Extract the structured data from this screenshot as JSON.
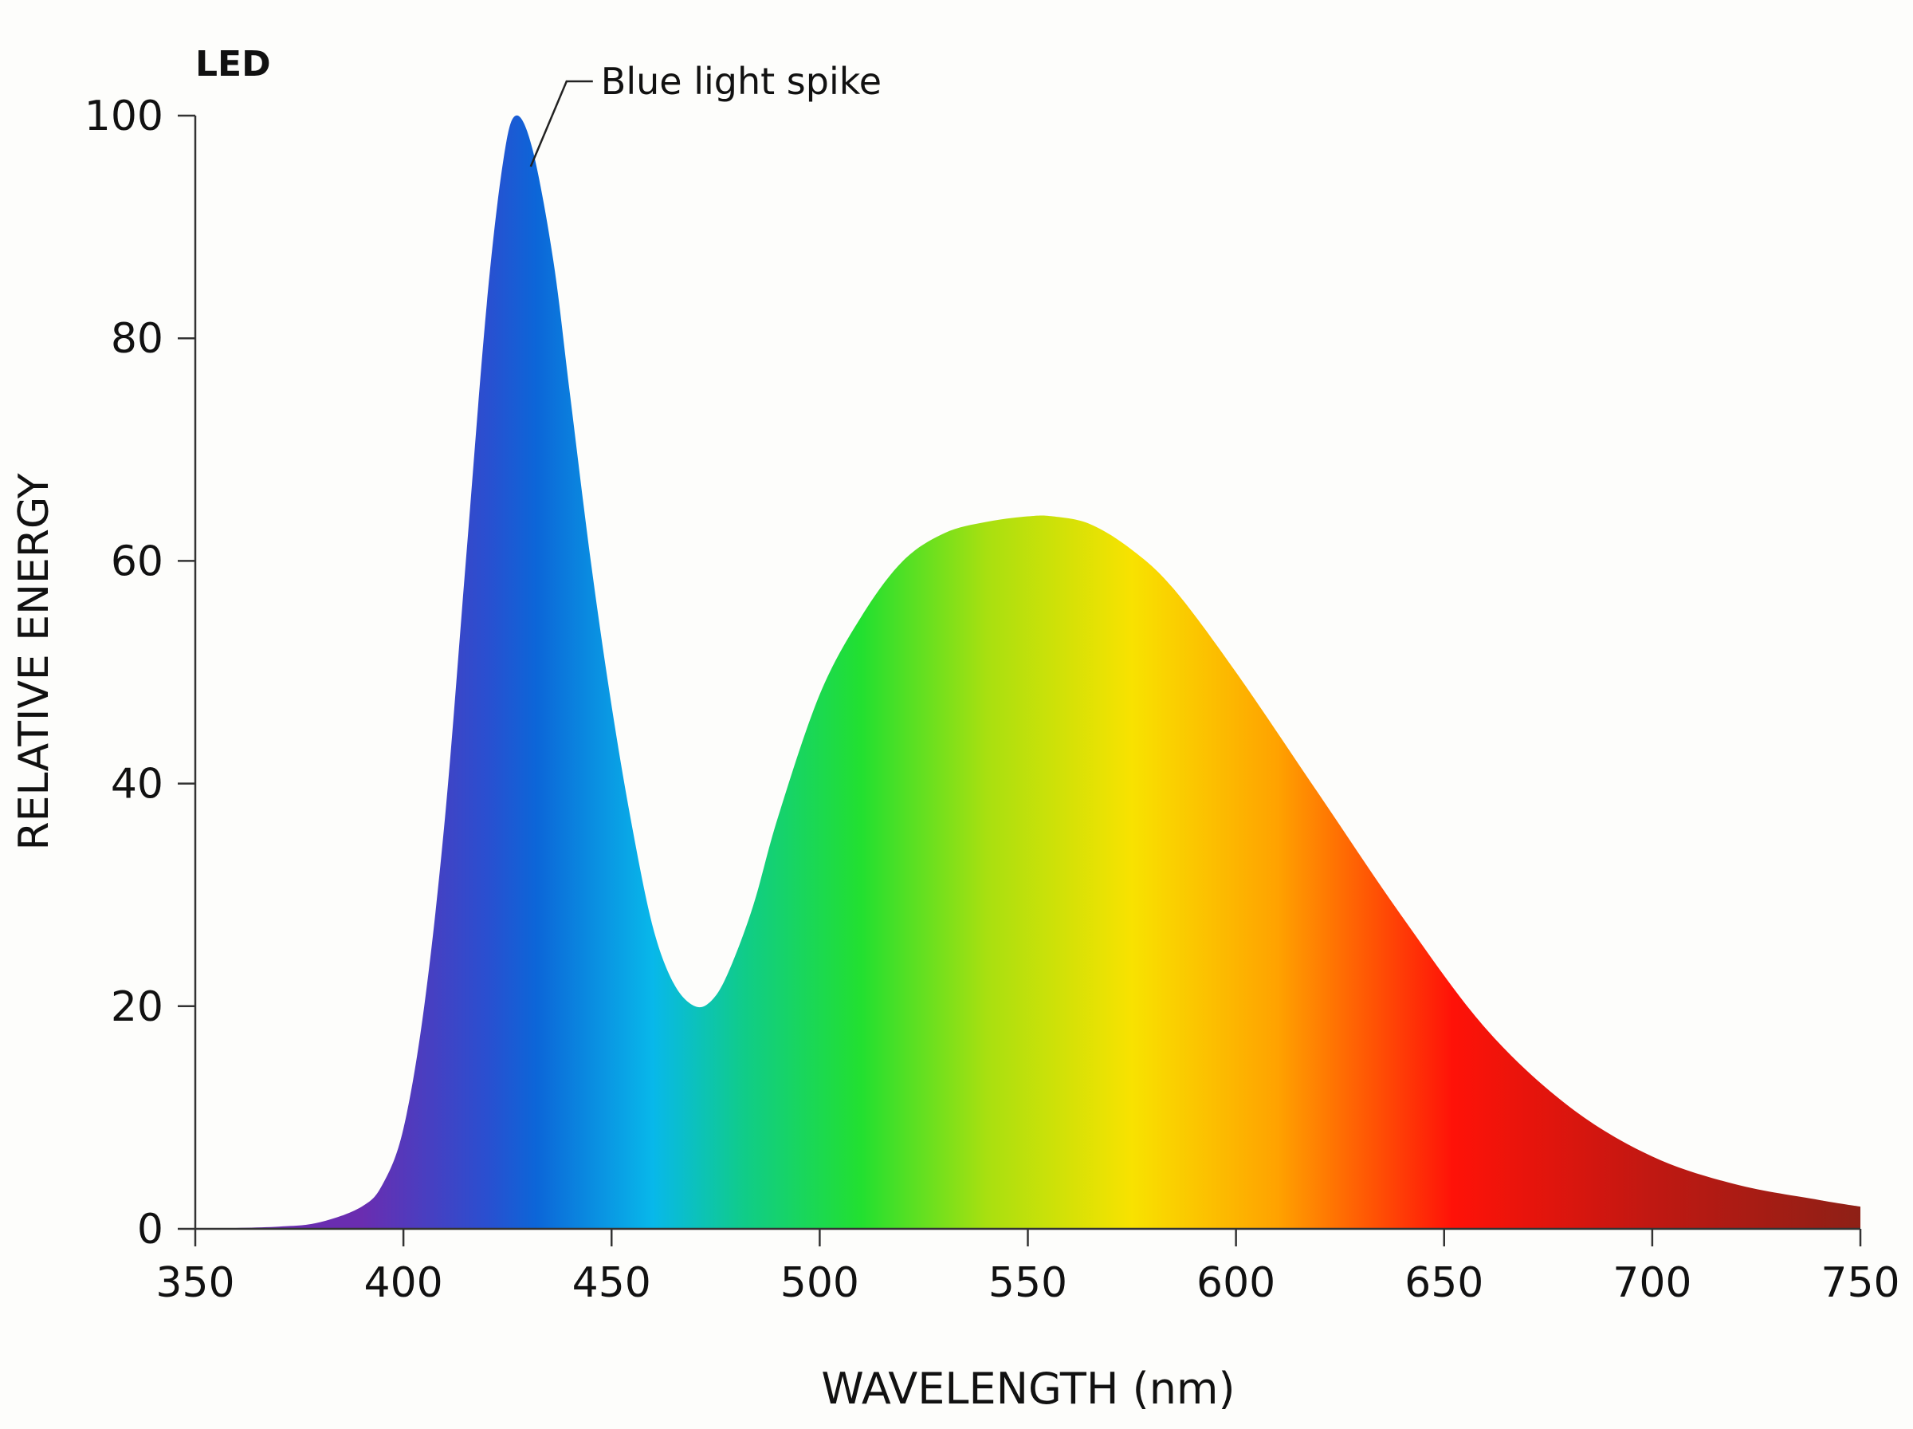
{
  "chart_data": {
    "type": "area",
    "title": "LED",
    "xlabel": "WAVELENGTH (nm)",
    "ylabel": "RELATIVE ENERGY",
    "xlim": [
      350,
      750
    ],
    "ylim": [
      0,
      100
    ],
    "xticks": [
      350,
      400,
      450,
      500,
      550,
      600,
      650,
      700,
      750
    ],
    "yticks": [
      0,
      20,
      40,
      60,
      80,
      100
    ],
    "grid": false,
    "annotation": {
      "text": "Blue light spike",
      "x": 430,
      "y": 96
    },
    "series": [
      {
        "name": "LED spectrum",
        "x": [
          350,
          370,
          380,
          390,
          395,
          400,
          405,
          410,
          415,
          420,
          424,
          427,
          431,
          436,
          440,
          445,
          450,
          455,
          460,
          465,
          470,
          474,
          478,
          484,
          490,
          500,
          510,
          520,
          530,
          540,
          550,
          556,
          565,
          575,
          585,
          600,
          620,
          640,
          660,
          680,
          700,
          720,
          740,
          750
        ],
        "values": [
          0,
          0.2,
          0.6,
          2,
          4,
          9,
          20,
          37,
          60,
          83,
          96,
          100,
          97,
          87,
          75,
          60,
          47,
          36,
          27,
          22,
          20,
          20.5,
          23,
          29,
          37,
          48,
          55,
          60,
          62.5,
          63.5,
          64,
          64,
          63.3,
          61,
          57.5,
          50,
          39,
          28,
          18,
          11,
          6.5,
          4,
          2.6,
          2
        ]
      }
    ],
    "colors": {
      "stops": [
        "#6a2db0",
        "#2a4fd0",
        "#0c66d8",
        "#08b8ea",
        "#10cc88",
        "#22e030",
        "#a8e010",
        "#f8e200",
        "#ffa200",
        "#ff1208",
        "#c01812",
        "#8e2016"
      ],
      "stop_nm": [
        390,
        420,
        432,
        460,
        482,
        510,
        540,
        575,
        610,
        652,
        700,
        750
      ],
      "axis": "#333333"
    }
  }
}
